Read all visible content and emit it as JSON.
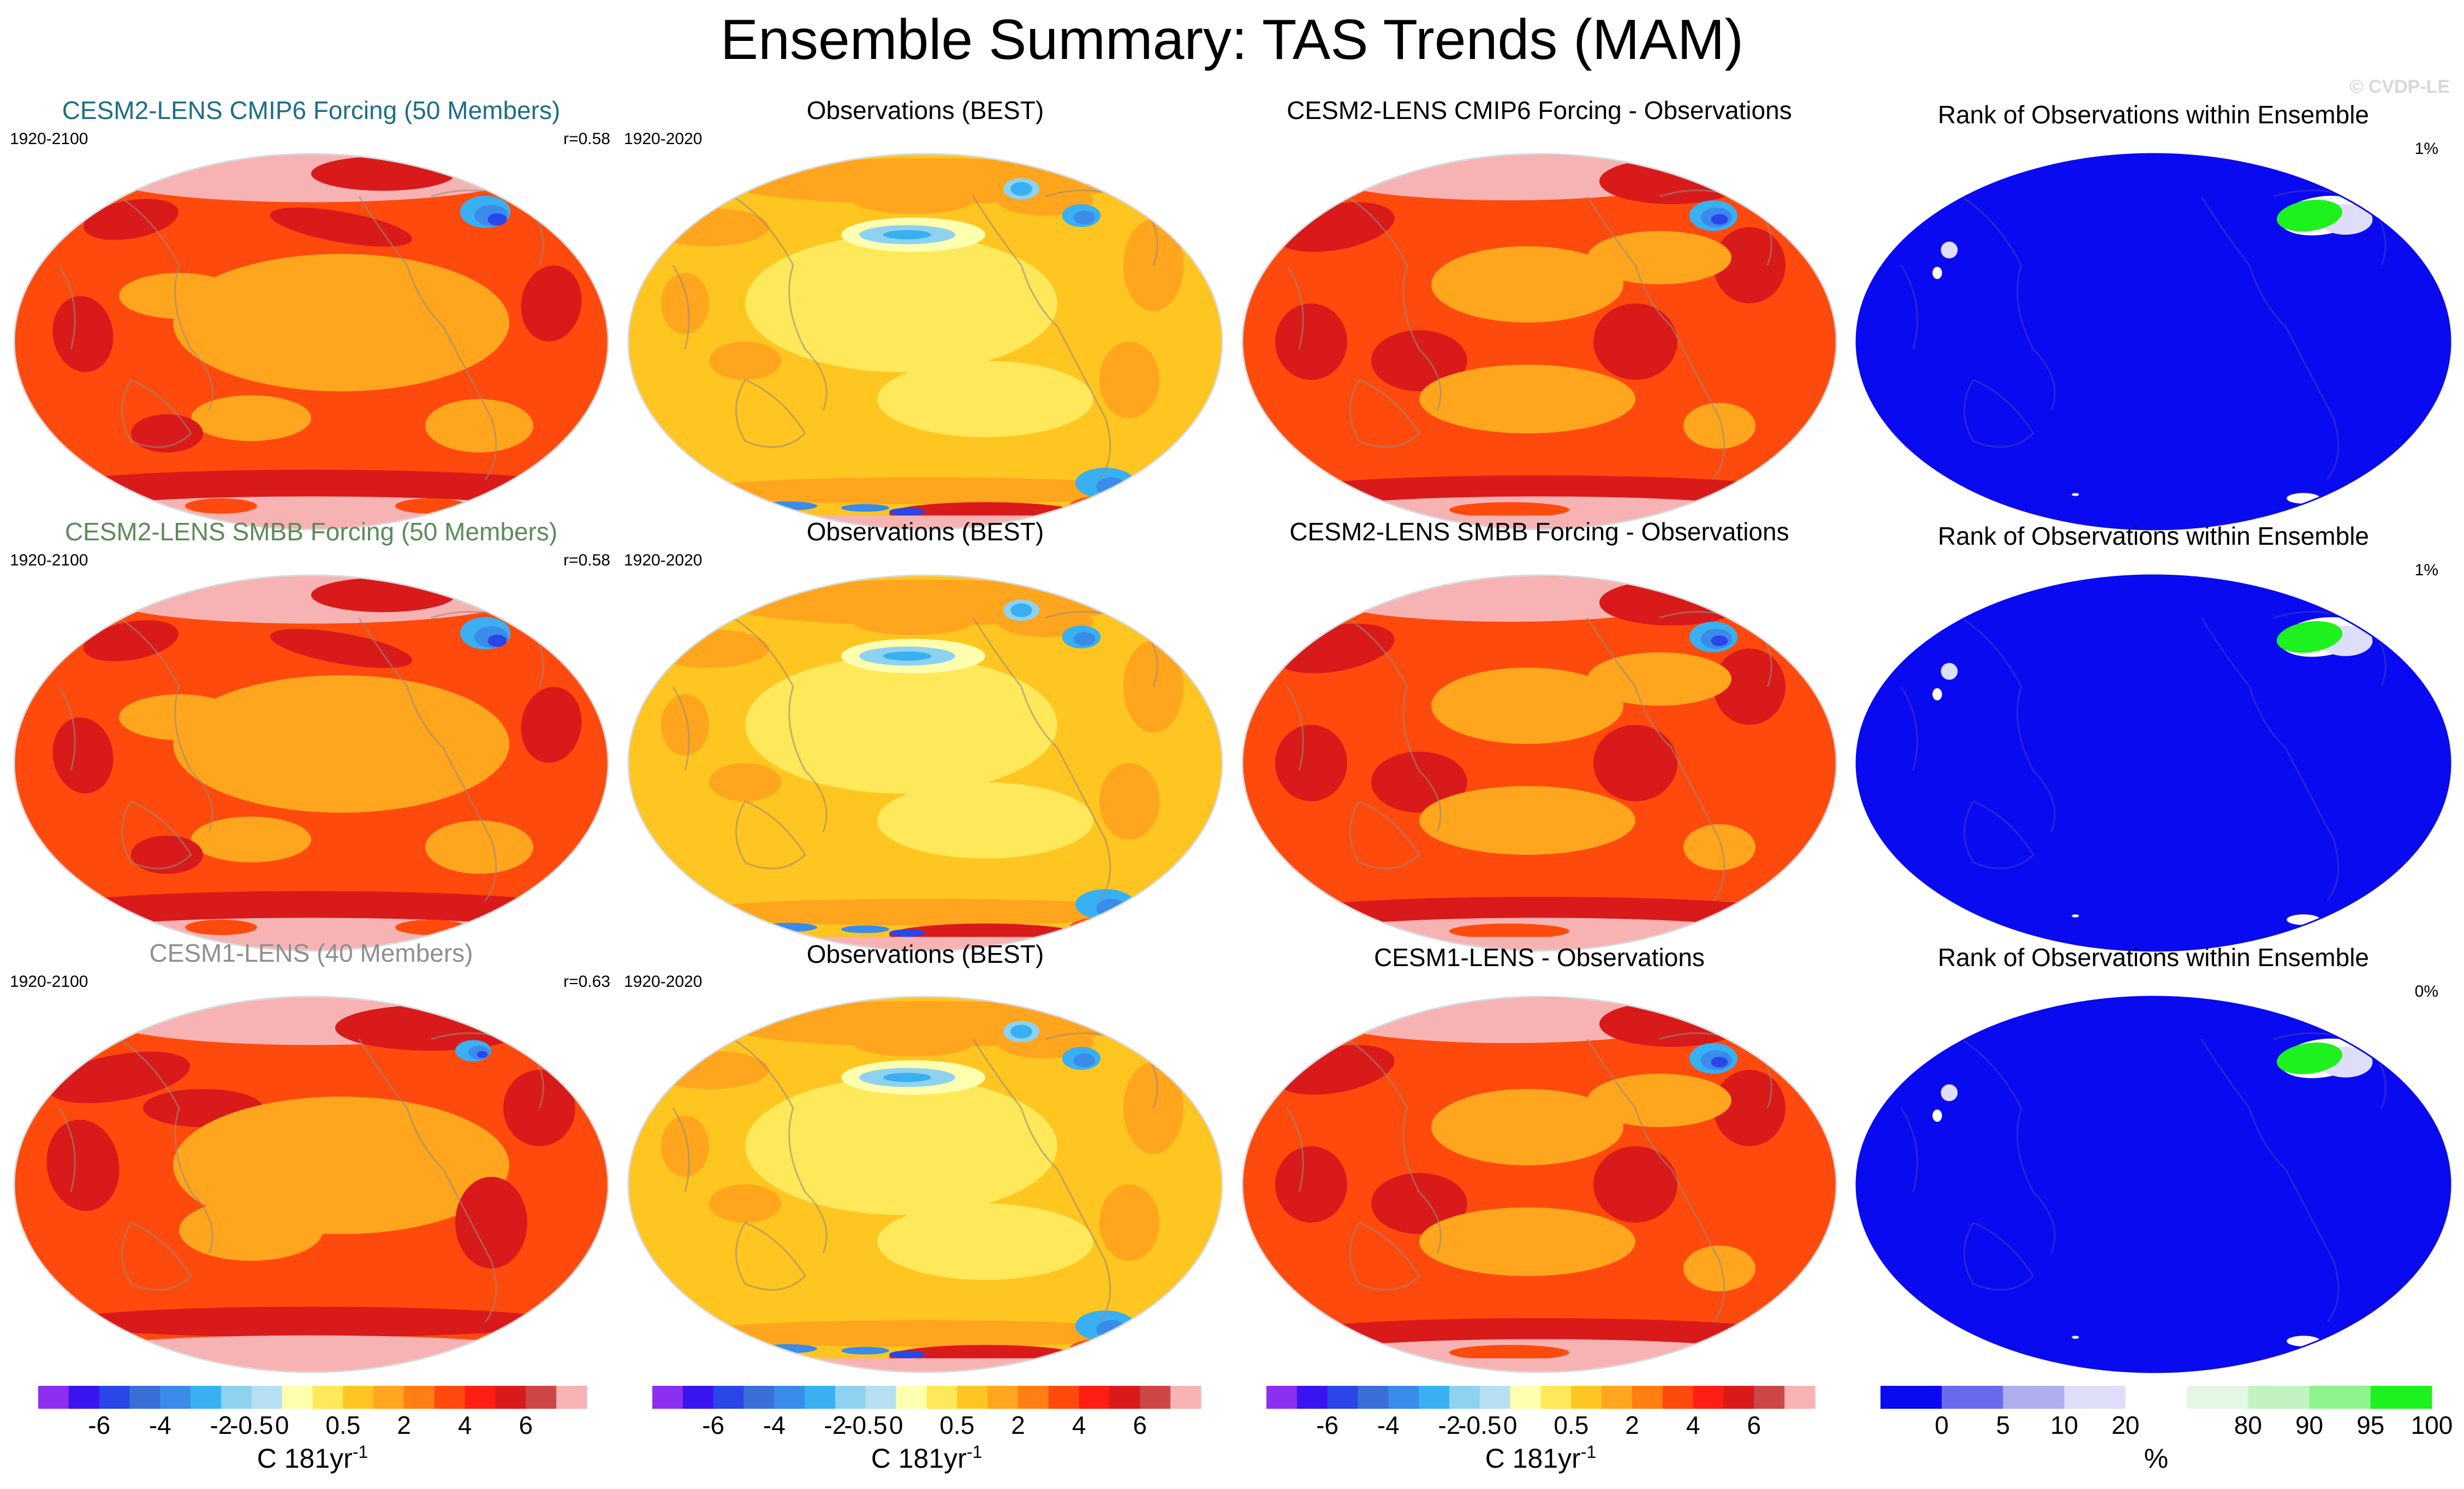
{
  "title": "Ensemble Summary: TAS Trends (MAM)",
  "watermark": "© CVDP-LE",
  "chart_data": {
    "type": "map-grid",
    "projection": "Robinson, Pacific-centered",
    "trend_colors": [
      "#8c2ff0",
      "#3a14f0",
      "#2a45e8",
      "#3a6fd8",
      "#3a8bea",
      "#38b0f2",
      "#8ed2f0",
      "#b7dff2",
      "#ffffb0",
      "#ffe85a",
      "#ffc520",
      "#ffa51e",
      "#ff7f13",
      "#ff4a0e",
      "#ff1e14",
      "#d81a1a",
      "#cf4646",
      "#f7b3b3"
    ],
    "trend_ticks": [
      "-6",
      "-4",
      "-2",
      "-0.5",
      "0",
      "0.5",
      "2",
      "4",
      "6"
    ],
    "trend_units": "C 181yr",
    "trend_units_exp": "-1",
    "rank_colors": [
      "#0a0af0",
      "#6a6aee",
      "#aeaeee",
      "#dedef8",
      "#ffffff",
      "#e2f8e2",
      "#c2f2c2",
      "#8ef28e",
      "#1ef21e"
    ],
    "rank_ticks": [
      "0",
      "5",
      "10",
      "20",
      "80",
      "90",
      "95",
      "100"
    ],
    "rank_units": "%",
    "rows": [
      {
        "model": {
          "title": "CESM2-LENS CMIP6 Forcing (50 Members)",
          "title_color": "#1d6e84",
          "period": "1920-2100",
          "corr": "r=0.58",
          "style": "model"
        },
        "obs": {
          "title": "Observations (BEST)",
          "period": "1920-2020",
          "style": "obs"
        },
        "diff": {
          "title": "CESM2-LENS CMIP6 Forcing - Observations",
          "style": "diff"
        },
        "rank": {
          "title": "Rank of Observations within Ensemble",
          "value": "1%",
          "style": "rank"
        }
      },
      {
        "model": {
          "title": "CESM2-LENS SMBB Forcing (50 Members)",
          "title_color": "#5d8a5a",
          "period": "1920-2100",
          "corr": "r=0.58",
          "style": "model"
        },
        "obs": {
          "title": "Observations (BEST)",
          "period": "1920-2020",
          "style": "obs"
        },
        "diff": {
          "title": "CESM2-LENS SMBB Forcing - Observations",
          "style": "diff"
        },
        "rank": {
          "title": "Rank of Observations within Ensemble",
          "value": "1%",
          "style": "rank"
        }
      },
      {
        "model": {
          "title": "CESM1-LENS (40 Members)",
          "title_color": "#8f8f8f",
          "period": "1920-2100",
          "corr": "r=0.63",
          "style": "model2"
        },
        "obs": {
          "title": "Observations (BEST)",
          "period": "1920-2020",
          "style": "obs"
        },
        "diff": {
          "title": "CESM1-LENS - Observations",
          "style": "diff"
        },
        "rank": {
          "title": "Rank of Observations within Ensemble",
          "value": "0%",
          "style": "rank"
        }
      }
    ]
  }
}
